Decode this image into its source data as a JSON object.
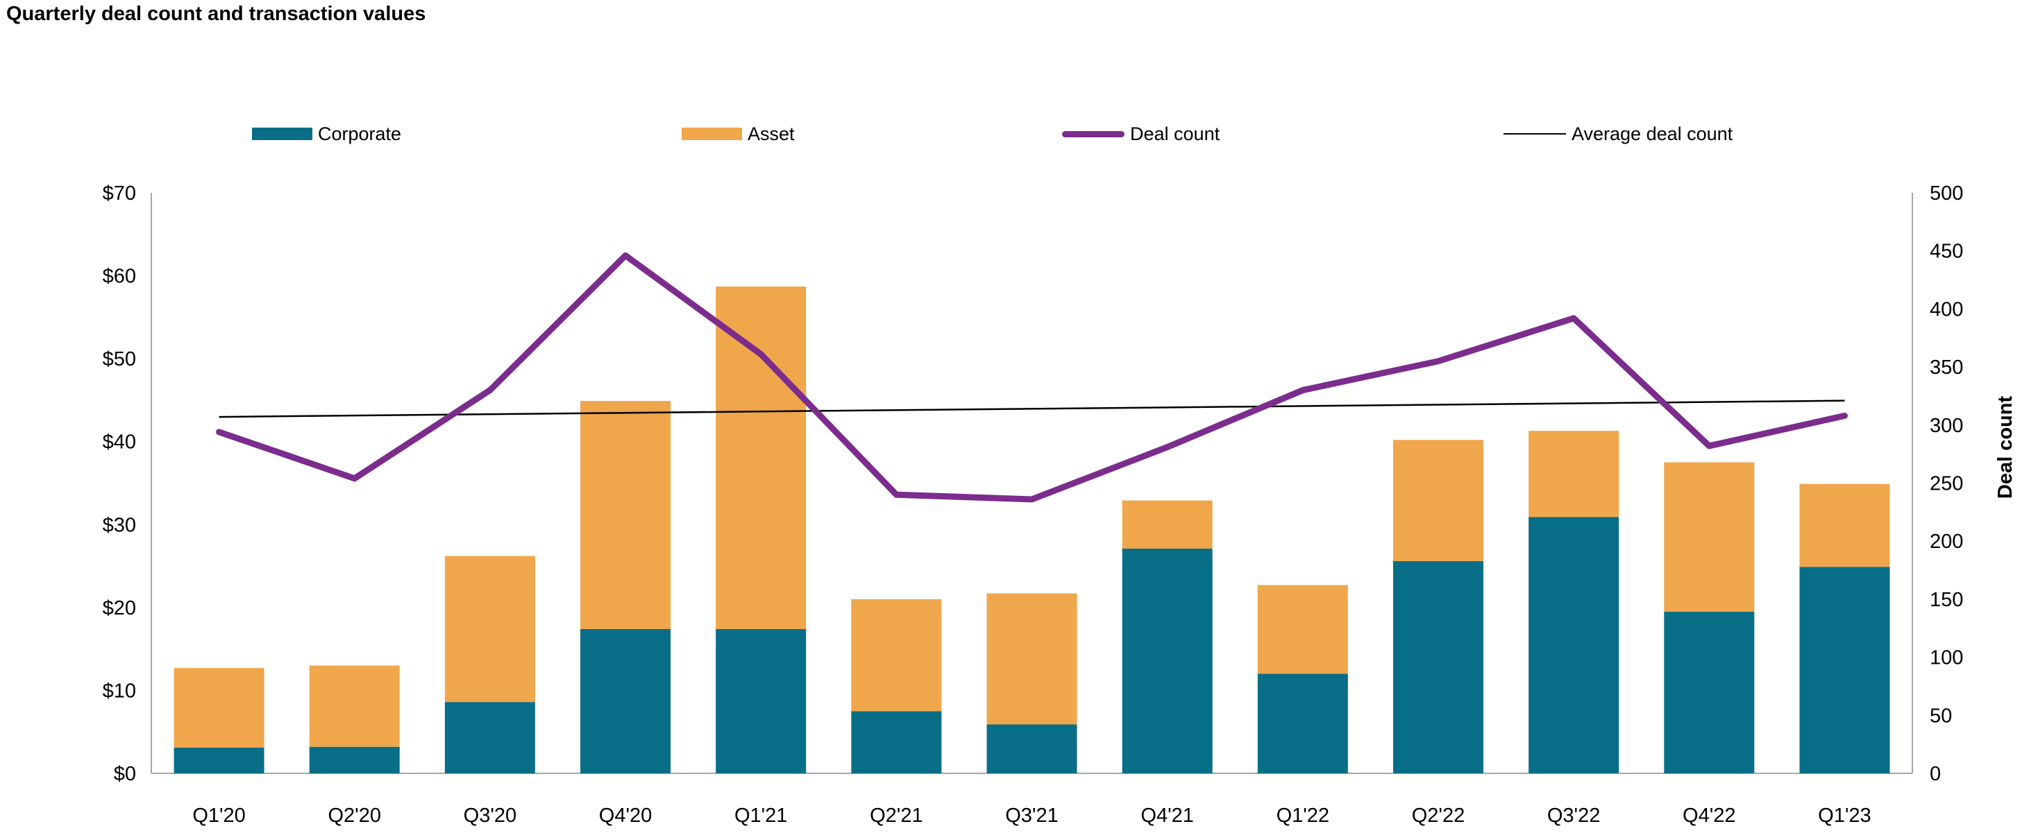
{
  "title": "Quarterly deal count and transaction values",
  "legend": {
    "corporate": "Corporate",
    "asset": "Asset",
    "deal_count": "Deal count",
    "average_deal_count": "Average deal count"
  },
  "colors": {
    "corporate": "#086E87",
    "asset": "#F0A64B",
    "deal_count": "#7B2C8D",
    "average_line": "#000000",
    "axis_line": "#A6A6A6"
  },
  "chart_data": {
    "type": "combo-stacked-bar-line",
    "categories": [
      "Q1'20",
      "Q2'20",
      "Q3'20",
      "Q4'20",
      "Q1'21",
      "Q2'21",
      "Q3'21",
      "Q4'21",
      "Q1'22",
      "Q2'22",
      "Q3'22",
      "Q4'22",
      "Q1'23"
    ],
    "series": [
      {
        "name": "Corporate",
        "type": "bar",
        "stack": "value",
        "axis": "left",
        "values": [
          3.1,
          3.2,
          8.6,
          17.4,
          17.4,
          7.5,
          5.9,
          27.1,
          12.0,
          25.6,
          30.9,
          19.5,
          24.9
        ]
      },
      {
        "name": "Asset",
        "type": "bar",
        "stack": "value",
        "axis": "left",
        "values": [
          9.6,
          9.8,
          17.6,
          27.5,
          41.3,
          13.5,
          15.8,
          5.8,
          10.7,
          14.6,
          10.4,
          18.0,
          10.0
        ]
      },
      {
        "name": "Deal count",
        "type": "line",
        "axis": "right",
        "values": [
          294,
          254,
          330,
          446,
          361,
          240,
          236,
          281,
          330,
          355,
          392,
          282,
          308
        ]
      },
      {
        "name": "Average deal count",
        "type": "trendline",
        "axis": "right",
        "endpoints": [
          307,
          321
        ]
      }
    ],
    "totals_left_axis": [
      12.7,
      13.0,
      26.2,
      44.9,
      58.7,
      21.0,
      21.7,
      32.9,
      22.7,
      40.2,
      41.3,
      37.5,
      34.9
    ],
    "left_axis": {
      "min": 0,
      "max": 70,
      "ticks": [
        "$70",
        "$60",
        "$50",
        "$40",
        "$30",
        "$20",
        "$10",
        "$0"
      ]
    },
    "right_axis": {
      "min": 0,
      "max": 500,
      "title": "Deal count",
      "ticks": [
        "500",
        "450",
        "400",
        "350",
        "300",
        "250",
        "200",
        "150",
        "100",
        "50",
        "0"
      ]
    },
    "grid": false,
    "legend_position": "top"
  }
}
